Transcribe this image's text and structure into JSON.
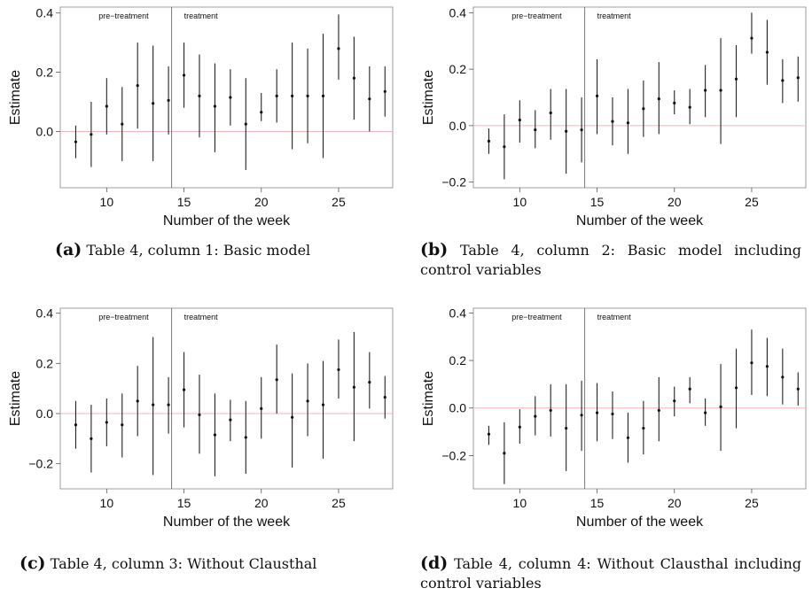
{
  "chart_data": [
    {
      "type": "scatter",
      "panel": "a",
      "caption_letter": "(a)",
      "caption_text": "Table 4, column 1: Basic model",
      "xlabel": "Number of the week",
      "ylabel": "Estimate",
      "xlim": [
        7,
        28.5
      ],
      "ylim": [
        -0.19,
        0.42
      ],
      "xticks": [
        10,
        15,
        20,
        25
      ],
      "yticks": [
        0.0,
        0.2,
        0.4
      ],
      "ytick_labels": [
        "0.0",
        "0.2",
        "0.4"
      ],
      "reference_line": 0,
      "treatment_start": 14.2,
      "region_labels": {
        "pre": "pre−treatment",
        "post": "treatment"
      },
      "x": [
        8,
        9,
        10,
        11,
        12,
        13,
        14,
        15,
        16,
        17,
        18,
        19,
        20,
        21,
        22,
        23,
        24,
        25,
        26,
        27,
        28
      ],
      "estimate": [
        -0.035,
        -0.01,
        0.085,
        0.025,
        0.155,
        0.095,
        0.105,
        0.19,
        0.12,
        0.085,
        0.115,
        0.025,
        0.065,
        0.12,
        0.12,
        0.12,
        0.12,
        0.28,
        0.18,
        0.11,
        0.135
      ],
      "lower": [
        -0.09,
        -0.12,
        -0.01,
        -0.1,
        0.01,
        -0.1,
        -0.01,
        0.08,
        -0.02,
        -0.07,
        0.02,
        -0.13,
        0.035,
        0.03,
        -0.06,
        -0.04,
        -0.09,
        0.175,
        0.04,
        0.0,
        0.05
      ],
      "upper": [
        0.02,
        0.1,
        0.18,
        0.15,
        0.3,
        0.29,
        0.22,
        0.3,
        0.26,
        0.23,
        0.21,
        0.18,
        0.13,
        0.21,
        0.3,
        0.28,
        0.33,
        0.395,
        0.32,
        0.22,
        0.22
      ]
    },
    {
      "type": "scatter",
      "panel": "b",
      "caption_letter": "(b)",
      "caption_text": "Table 4, column 2: Basic model including control variables",
      "xlabel": "Number of the week",
      "ylabel": "Estimate",
      "xlim": [
        7,
        28.5
      ],
      "ylim": [
        -0.22,
        0.42
      ],
      "xticks": [
        10,
        15,
        20,
        25
      ],
      "yticks": [
        -0.2,
        0.0,
        0.2,
        0.4
      ],
      "ytick_labels": [
        "−0.2",
        "0.0",
        "0.2",
        "0.4"
      ],
      "reference_line": 0,
      "treatment_start": 14.2,
      "region_labels": {
        "pre": "pre−treatment",
        "post": "treatment"
      },
      "x": [
        8,
        9,
        10,
        11,
        12,
        13,
        14,
        15,
        16,
        17,
        18,
        19,
        20,
        21,
        22,
        23,
        24,
        25,
        26,
        27,
        28
      ],
      "estimate": [
        -0.055,
        -0.075,
        0.02,
        -0.015,
        0.045,
        -0.02,
        -0.015,
        0.105,
        0.015,
        0.01,
        0.06,
        0.095,
        0.08,
        0.065,
        0.125,
        0.125,
        0.165,
        0.31,
        0.26,
        0.16,
        0.17
      ],
      "lower": [
        -0.1,
        -0.19,
        -0.06,
        -0.08,
        -0.05,
        -0.17,
        -0.13,
        -0.03,
        -0.07,
        -0.1,
        -0.04,
        -0.03,
        0.04,
        0.005,
        0.03,
        -0.065,
        0.03,
        0.255,
        0.145,
        0.08,
        0.085
      ],
      "upper": [
        -0.01,
        0.04,
        0.09,
        0.055,
        0.13,
        0.13,
        0.1,
        0.235,
        0.1,
        0.13,
        0.16,
        0.225,
        0.125,
        0.13,
        0.215,
        0.31,
        0.285,
        0.4,
        0.375,
        0.235,
        0.245
      ]
    },
    {
      "type": "scatter",
      "panel": "c",
      "caption_letter": "(c)",
      "caption_text": "Table 4, column 3: Without Clausthal",
      "xlabel": "Number of the week",
      "ylabel": "Estimate",
      "xlim": [
        7,
        28.5
      ],
      "ylim": [
        -0.3,
        0.42
      ],
      "xticks": [
        10,
        15,
        20,
        25
      ],
      "yticks": [
        -0.2,
        0.0,
        0.2,
        0.4
      ],
      "ytick_labels": [
        "−0.2",
        "0.0",
        "0.2",
        "0.4"
      ],
      "reference_line": 0,
      "treatment_start": 14.2,
      "region_labels": {
        "pre": "pre−treatment",
        "post": "treatment"
      },
      "x": [
        8,
        9,
        10,
        11,
        12,
        13,
        14,
        15,
        16,
        17,
        18,
        19,
        20,
        21,
        22,
        23,
        24,
        25,
        26,
        27,
        28
      ],
      "estimate": [
        -0.045,
        -0.1,
        -0.035,
        -0.045,
        0.05,
        0.035,
        0.035,
        0.095,
        -0.005,
        -0.085,
        -0.025,
        -0.095,
        0.02,
        0.135,
        -0.015,
        0.05,
        0.035,
        0.175,
        0.105,
        0.125,
        0.065
      ],
      "lower": [
        -0.14,
        -0.235,
        -0.13,
        -0.175,
        -0.09,
        -0.245,
        -0.08,
        -0.055,
        -0.16,
        -0.25,
        -0.11,
        -0.24,
        -0.1,
        0.0,
        -0.215,
        -0.09,
        -0.18,
        0.06,
        -0.11,
        0.02,
        -0.02
      ],
      "upper": [
        0.05,
        0.035,
        0.06,
        0.08,
        0.19,
        0.305,
        0.145,
        0.245,
        0.155,
        0.08,
        0.055,
        0.05,
        0.145,
        0.275,
        0.16,
        0.2,
        0.21,
        0.295,
        0.325,
        0.245,
        0.15
      ]
    },
    {
      "type": "scatter",
      "panel": "d",
      "caption_letter": "(d)",
      "caption_text": "Table 4, column 4: Without Clausthal including control variables",
      "xlabel": "Number of the week",
      "ylabel": "Estimate",
      "xlim": [
        7,
        28.5
      ],
      "ylim": [
        -0.34,
        0.42
      ],
      "xticks": [
        10,
        15,
        20,
        25
      ],
      "yticks": [
        -0.2,
        0.0,
        0.2,
        0.4
      ],
      "ytick_labels": [
        "−0.2",
        "0.0",
        "0.2",
        "0.4"
      ],
      "reference_line": 0,
      "treatment_start": 14.2,
      "region_labels": {
        "pre": "pre−treatment",
        "post": "treatment"
      },
      "x": [
        8,
        9,
        10,
        11,
        12,
        13,
        14,
        15,
        16,
        17,
        18,
        19,
        20,
        21,
        22,
        23,
        24,
        25,
        26,
        27,
        28
      ],
      "estimate": [
        -0.11,
        -0.19,
        -0.08,
        -0.035,
        -0.01,
        -0.085,
        -0.03,
        -0.02,
        -0.025,
        -0.125,
        -0.085,
        -0.01,
        0.03,
        0.08,
        -0.02,
        0.005,
        0.085,
        0.19,
        0.175,
        0.13,
        0.08
      ],
      "lower": [
        -0.155,
        -0.32,
        -0.15,
        -0.115,
        -0.12,
        -0.265,
        -0.18,
        -0.14,
        -0.13,
        -0.23,
        -0.195,
        -0.14,
        -0.035,
        0.02,
        -0.075,
        -0.18,
        -0.085,
        0.055,
        0.05,
        0.015,
        0.01
      ],
      "upper": [
        -0.075,
        -0.06,
        -0.005,
        0.05,
        0.1,
        0.1,
        0.115,
        0.105,
        0.07,
        -0.02,
        0.03,
        0.13,
        0.09,
        0.13,
        0.04,
        0.185,
        0.25,
        0.33,
        0.295,
        0.25,
        0.15
      ]
    }
  ]
}
